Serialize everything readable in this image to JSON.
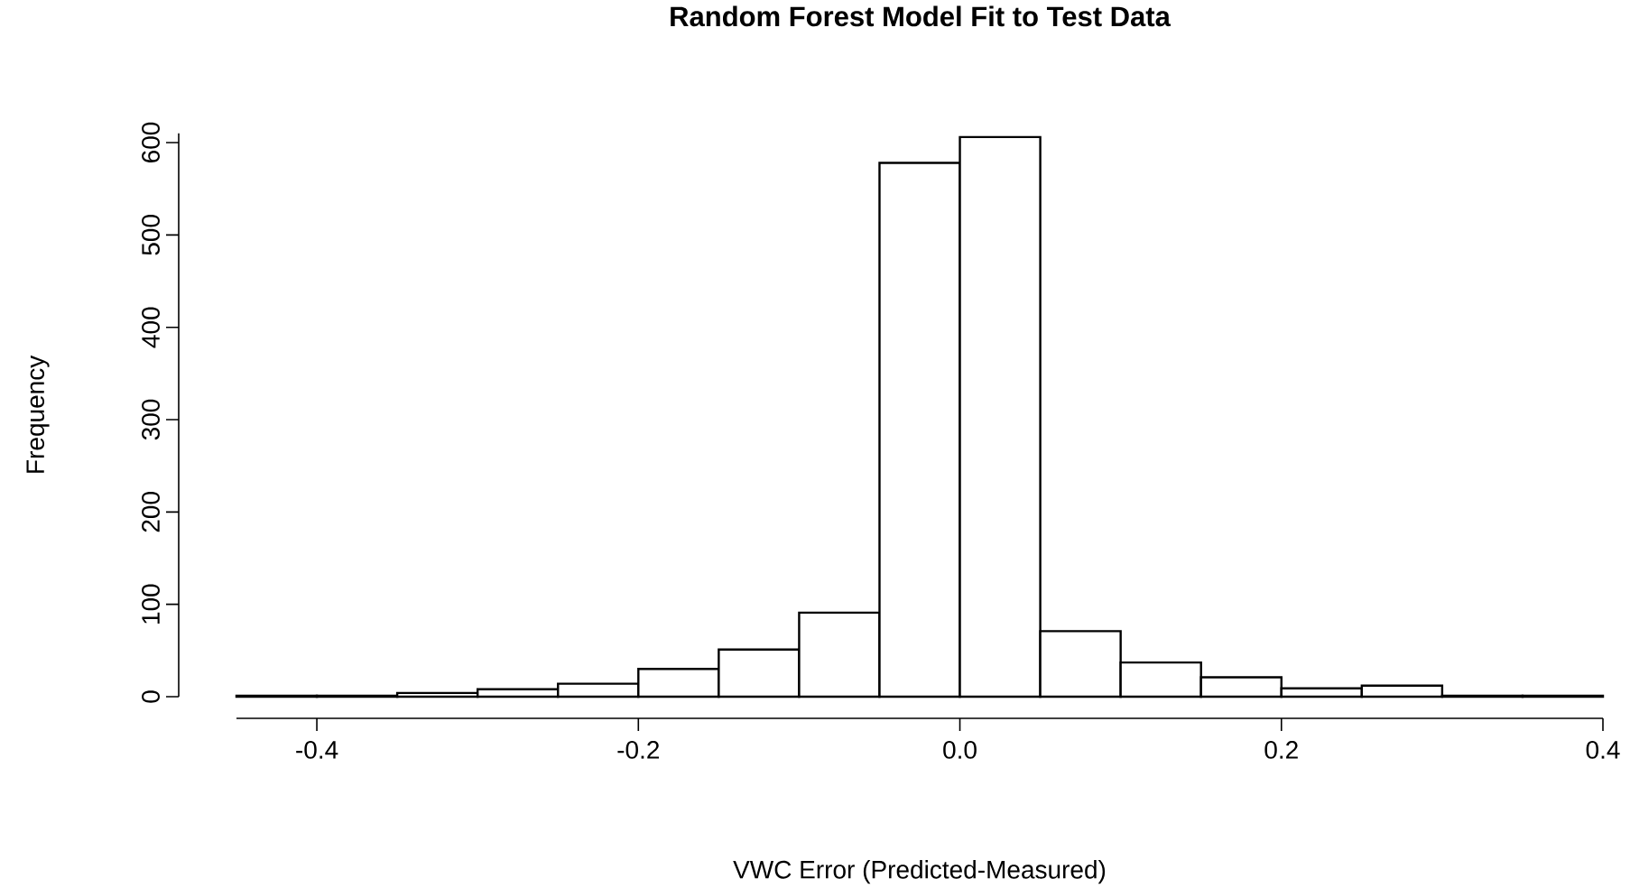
{
  "chart_data": {
    "type": "histogram",
    "title": "Random Forest Model Fit to Test Data",
    "xlabel": "VWC Error (Predicted-Measured)",
    "ylabel": "Frequency",
    "bins": [
      -0.45,
      -0.4,
      -0.35,
      -0.3,
      -0.25,
      -0.2,
      -0.15,
      -0.1,
      -0.05,
      0,
      0.05,
      0.1,
      0.15,
      0.2,
      0.25,
      0.3,
      0.35,
      0.4
    ],
    "values": [
      1,
      1,
      4,
      8,
      14,
      30,
      51,
      91,
      578,
      606,
      71,
      37,
      21,
      9,
      12,
      1,
      1
    ],
    "color": "#ffffff",
    "xlim": [
      -0.45,
      0.4
    ],
    "ylim": [
      0,
      610
    ],
    "xticks": [
      {
        "value": -0.4,
        "label": "-0.4"
      },
      {
        "value": -0.2,
        "label": "-0.2"
      },
      {
        "value": 0,
        "label": "0.0"
      },
      {
        "value": 0.2,
        "label": "0.2"
      },
      {
        "value": 0.4,
        "label": "0.4"
      }
    ],
    "yticks": [
      0,
      100,
      200,
      300,
      400,
      500,
      600
    ]
  }
}
